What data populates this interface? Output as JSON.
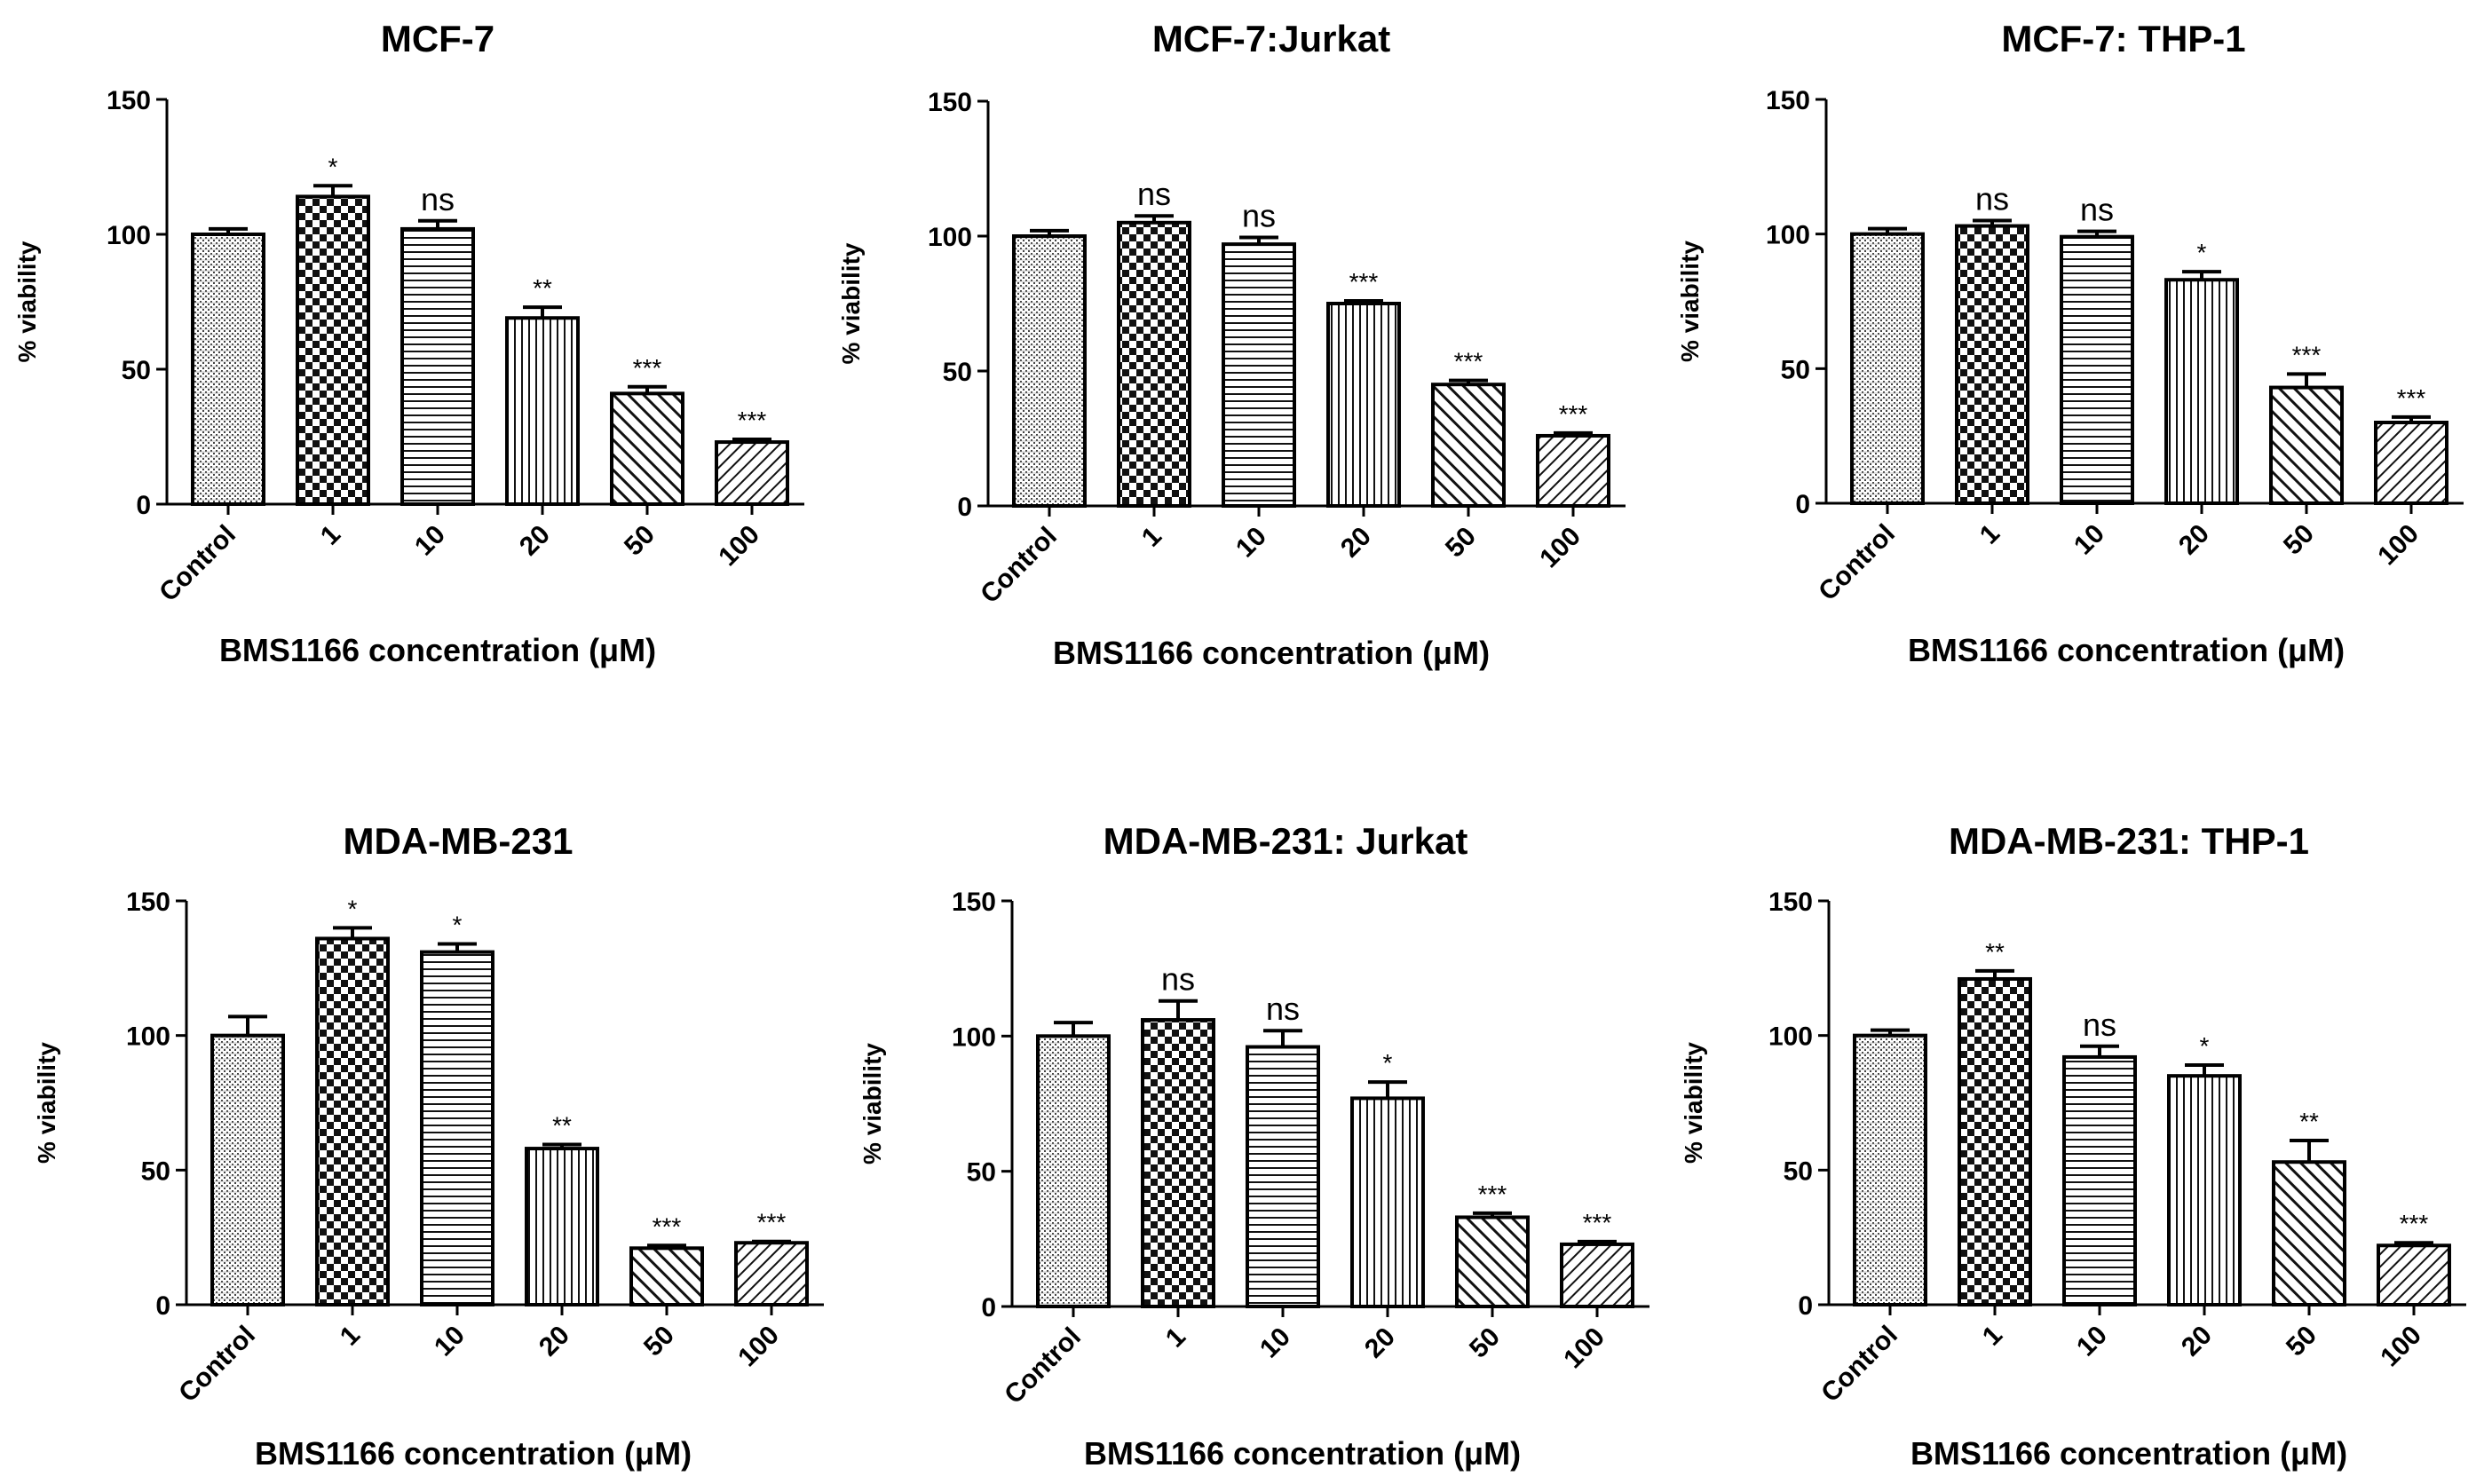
{
  "chart_data": [
    {
      "type": "bar",
      "title": "MCF-7",
      "categories": [
        "Control",
        "1",
        "10",
        "20",
        "50",
        "100"
      ],
      "values": [
        100,
        114,
        102,
        69,
        41,
        23
      ],
      "errors": [
        2,
        4,
        3,
        4,
        2.5,
        1
      ],
      "significance": [
        "",
        "*",
        "ns",
        "**",
        "***",
        "***"
      ],
      "xlabel": "BMS1166 concentration (μM)",
      "ylabel": "% viability",
      "ylim": [
        0,
        150
      ],
      "yticks": [
        0,
        50,
        100,
        150
      ]
    },
    {
      "type": "bar",
      "title": "MCF-7:Jurkat",
      "categories": [
        "Control",
        "1",
        "10",
        "20",
        "50",
        "100"
      ],
      "values": [
        100,
        105,
        97,
        75,
        45,
        26
      ],
      "errors": [
        2,
        2.5,
        2.5,
        1,
        1.5,
        1
      ],
      "significance": [
        "",
        "ns",
        "ns",
        "***",
        "***",
        "***"
      ],
      "xlabel": "BMS1166 concentration (μM)",
      "ylabel": "% viability",
      "ylim": [
        0,
        150
      ],
      "yticks": [
        0,
        50,
        100,
        150
      ]
    },
    {
      "type": "bar",
      "title": "MCF-7: THP-1",
      "categories": [
        "Control",
        "1",
        "10",
        "20",
        "50",
        "100"
      ],
      "values": [
        100,
        103,
        99,
        83,
        43,
        30
      ],
      "errors": [
        2,
        2,
        2,
        3,
        5,
        2
      ],
      "significance": [
        "",
        "ns",
        "ns",
        "*",
        "***",
        "***"
      ],
      "xlabel": "BMS1166 concentration (μM)",
      "ylabel": "% viability",
      "ylim": [
        0,
        150
      ],
      "yticks": [
        0,
        50,
        100,
        150
      ]
    },
    {
      "type": "bar",
      "title": "MDA-MB-231",
      "categories": [
        "Control",
        "1",
        "10",
        "20",
        "50",
        "100"
      ],
      "values": [
        100,
        136,
        131,
        58,
        21,
        23
      ],
      "errors": [
        7,
        4,
        3,
        1.5,
        1,
        0.5
      ],
      "significance": [
        "",
        "*",
        "*",
        "**",
        "***",
        "***"
      ],
      "xlabel": "BMS1166 concentration (μM)",
      "ylabel": "% viability",
      "ylim": [
        0,
        150
      ],
      "yticks": [
        0,
        50,
        100,
        150
      ]
    },
    {
      "type": "bar",
      "title": "MDA-MB-231: Jurkat",
      "categories": [
        "Control",
        "1",
        "10",
        "20",
        "50",
        "100"
      ],
      "values": [
        100,
        106,
        96,
        77,
        33,
        23
      ],
      "errors": [
        5,
        7,
        6,
        6,
        1.5,
        1
      ],
      "significance": [
        "",
        "ns",
        "ns",
        "*",
        "***",
        "***"
      ],
      "xlabel": "BMS1166 concentration (μM)",
      "ylabel": "% viability",
      "ylim": [
        0,
        150
      ],
      "yticks": [
        0,
        50,
        100,
        150
      ]
    },
    {
      "type": "bar",
      "title": "MDA-MB-231: THP-1",
      "categories": [
        "Control",
        "1",
        "10",
        "20",
        "50",
        "100"
      ],
      "values": [
        100,
        121,
        92,
        85,
        53,
        22
      ],
      "errors": [
        2,
        3,
        4,
        4,
        8,
        1
      ],
      "significance": [
        "",
        "**",
        "ns",
        "*",
        "**",
        "***"
      ],
      "xlabel": "BMS1166 concentration (μM)",
      "ylabel": "% viability",
      "ylim": [
        0,
        150
      ],
      "yticks": [
        0,
        50,
        100,
        150
      ]
    }
  ]
}
